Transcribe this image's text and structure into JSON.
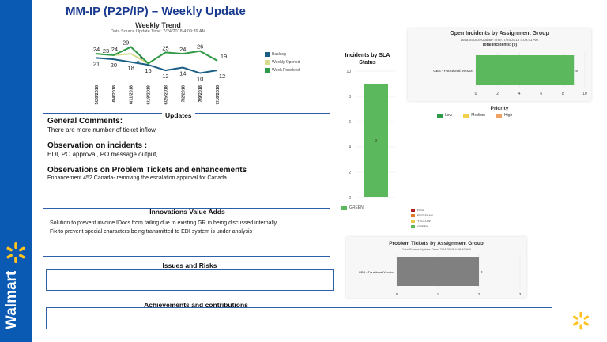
{
  "brand": {
    "name": "Walmart",
    "bar_color": "#0a5ab3",
    "spark_color": "#ffc220"
  },
  "page": {
    "title": "MM-IP (P2P/IP) – Weekly Update"
  },
  "weekly_trend": {
    "title": "Weekly Trend",
    "subtitle": "Data Source Update Time: 7/24/2018 4:09:39 AM",
    "legend": [
      "Backlog",
      "Weekly Opened",
      "Week Resolved"
    ],
    "chart_data": {
      "type": "line",
      "categories": [
        "5/28/2018",
        "6/4/2018",
        "6/11/2018",
        "6/18/2018",
        "6/25/2018",
        "7/2/2018",
        "7/9/2018",
        "7/16/2018"
      ],
      "series": [
        {
          "name": "Backlog",
          "color": "#1a5e86",
          "values": [
            21,
            20,
            18,
            16,
            12,
            14,
            10,
            12
          ]
        },
        {
          "name": "Weekly Opened",
          "color": "#d6dc8c",
          "values": [
            24,
            23,
            24,
            17,
            25,
            24,
            26,
            19
          ]
        },
        {
          "name": "Week Resolved",
          "color": "#2e9a4a",
          "values": [
            24,
            23,
            29,
            17,
            25,
            24,
            26,
            19
          ]
        }
      ],
      "labels_top": [
        "24",
        "23",
        "24",
        "29",
        "17",
        "25",
        "24",
        "26",
        "19"
      ],
      "labels_bottom": [
        "21",
        "20",
        "18",
        "16",
        "12",
        "14",
        "10",
        "12"
      ]
    }
  },
  "sla": {
    "title": "Incidents by SLA Status",
    "chart_data": {
      "type": "bar",
      "categories": [
        "GREEN"
      ],
      "values": [
        9
      ],
      "ylim": [
        0,
        10
      ],
      "yticks": [
        "10",
        "8",
        "6",
        "4",
        "2",
        "0"
      ],
      "bar_label": "9",
      "color": "#5cb85c"
    },
    "legend_main": "GREEN",
    "legend_status": [
      {
        "label": "RED",
        "color": "#b0202a"
      },
      {
        "label": "RED FLAG",
        "color": "#e07a2a"
      },
      {
        "label": "YELLOW",
        "color": "#e8c84a"
      },
      {
        "label": "GREEN",
        "color": "#5cb85c"
      }
    ]
  },
  "open_incidents": {
    "title": "Open Incidents by Assignment Group",
    "subtitle": "Data Source Update Time: 7/24/2018 4:09:41 AM",
    "total_label": "Total Incidents: (9)",
    "chart_data": {
      "type": "bar",
      "categories": [
        "GBS - Functional Vendor"
      ],
      "values": [
        9
      ],
      "xlim": [
        0,
        10
      ],
      "xticks": [
        "0",
        "2",
        "4",
        "6",
        "8",
        "10"
      ],
      "color": "#5cb85c"
    },
    "priority_title": "Priority",
    "priority_legend": [
      {
        "label": "Low",
        "color": "#2e9a4a"
      },
      {
        "label": "Medium",
        "color": "#f0d048"
      },
      {
        "label": "High",
        "color": "#f0a060"
      }
    ]
  },
  "problem_tickets": {
    "title": "Problem Tickets by Assignment Group",
    "subtitle": "Data Source Update Time: 7/24/2018 4:09:40 AM",
    "chart_data": {
      "type": "bar",
      "categories": [
        "GBS - Functional Vendor"
      ],
      "values": [
        2
      ],
      "xlim": [
        0,
        3
      ],
      "xticks": [
        "0",
        "1",
        "2",
        "3"
      ],
      "color": "#808080"
    }
  },
  "updates": {
    "title": "Updates",
    "general_heading": "General Comments:",
    "general_text": "There are more number of ticket inflow.",
    "incidents_heading": "Observation on incidents :",
    "incidents_text": "EDI, PO approval, PO message output,",
    "problems_heading": "Observations on Problem Tickets and enhancements",
    "problems_text": "Enhancement 452 Canada- removing the escalation approval for Canada"
  },
  "innovations": {
    "title": "Innovations Value Adds",
    "line1": "Solution to prevent invoice IDocs from failing due to existing GR in being discussed internally.",
    "line2": "Fix to prevent special characters being transmitted to EDI system is under analysis"
  },
  "issues": {
    "title": "Issues and Risks"
  },
  "achievements": {
    "title": "Achievements and contributions"
  }
}
